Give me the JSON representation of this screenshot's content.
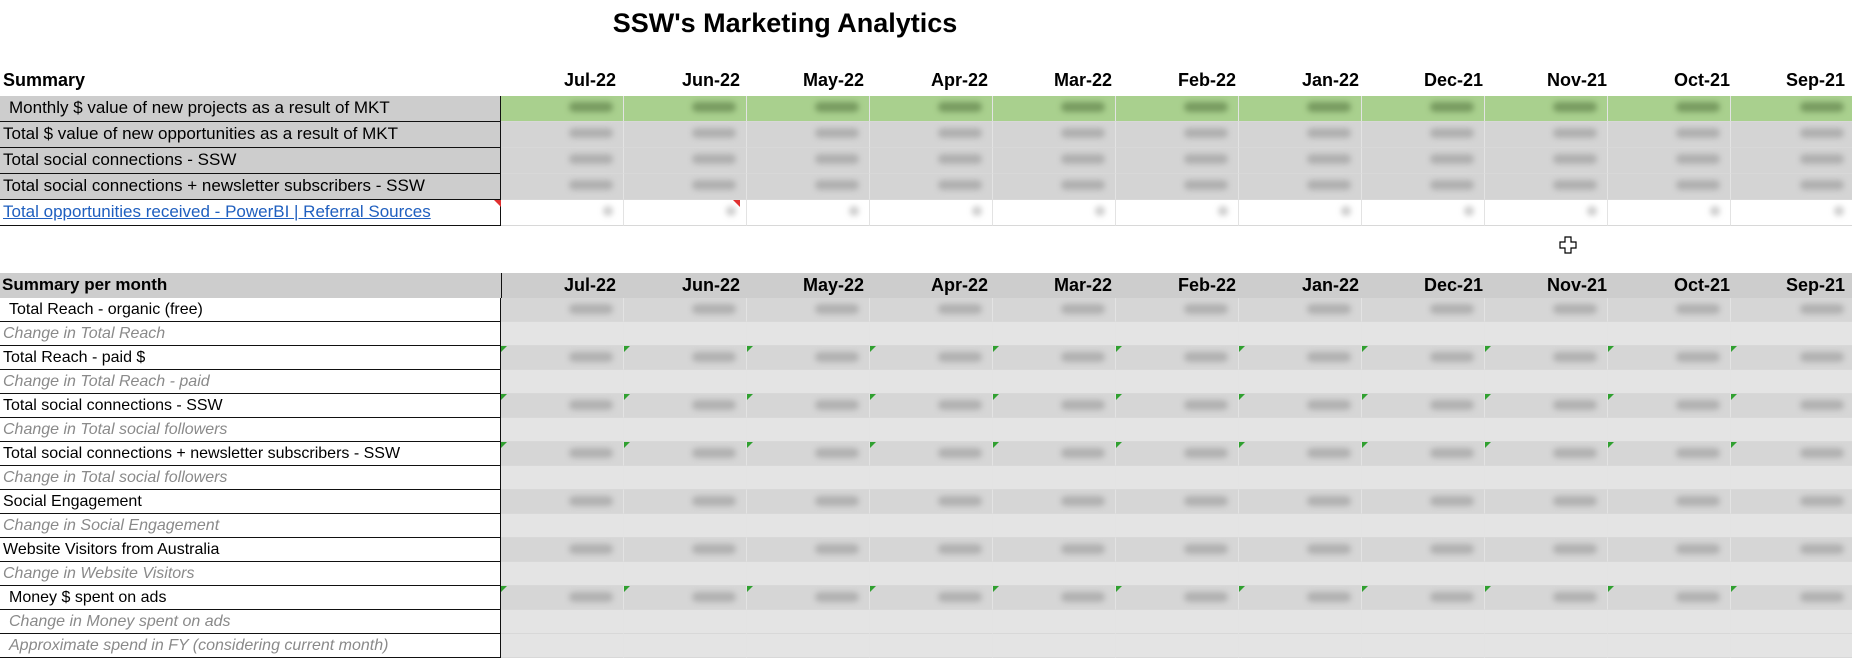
{
  "title": "SSW's Marketing Analytics",
  "months": [
    "Jul-22",
    "Jun-22",
    "May-22",
    "Apr-22",
    "Mar-22",
    "Feb-22",
    "Jan-22",
    "Dec-21",
    "Nov-21",
    "Oct-21",
    "Sep-21"
  ],
  "summary": {
    "header": "Summary",
    "rows": [
      {
        "label": "Monthly $ value of new projects as a result of MKT"
      },
      {
        "label": "Total $ value of new opportunities as a result of MKT"
      },
      {
        "label": "Total social connections - SSW"
      },
      {
        "label": "Total social connections + newsletter subscribers - SSW"
      },
      {
        "label": "Total opportunities received - PowerBI | Referral Sources"
      }
    ]
  },
  "per_month": {
    "header": "Summary per month",
    "rows": [
      {
        "label": "Total Reach - organic (free)"
      },
      {
        "label": "Change in Total Reach"
      },
      {
        "label": "Total Reach - paid $"
      },
      {
        "label": "Change in Total Reach - paid"
      },
      {
        "label": "Total social connections - SSW"
      },
      {
        "label": "Change in Total social followers"
      },
      {
        "label": "Total social connections + newsletter subscribers - SSW"
      },
      {
        "label": "Change in Total social followers"
      },
      {
        "label": "Social Engagement"
      },
      {
        "label": "Change in Social Engagement"
      },
      {
        "label": "Website Visitors from Australia"
      },
      {
        "label": "Change in Website Visitors"
      },
      {
        "label": "Money $ spent on ads"
      },
      {
        "label": "Change in Money spent on ads"
      },
      {
        "label": "Approximate spend in FY (considering current month)"
      }
    ]
  }
}
